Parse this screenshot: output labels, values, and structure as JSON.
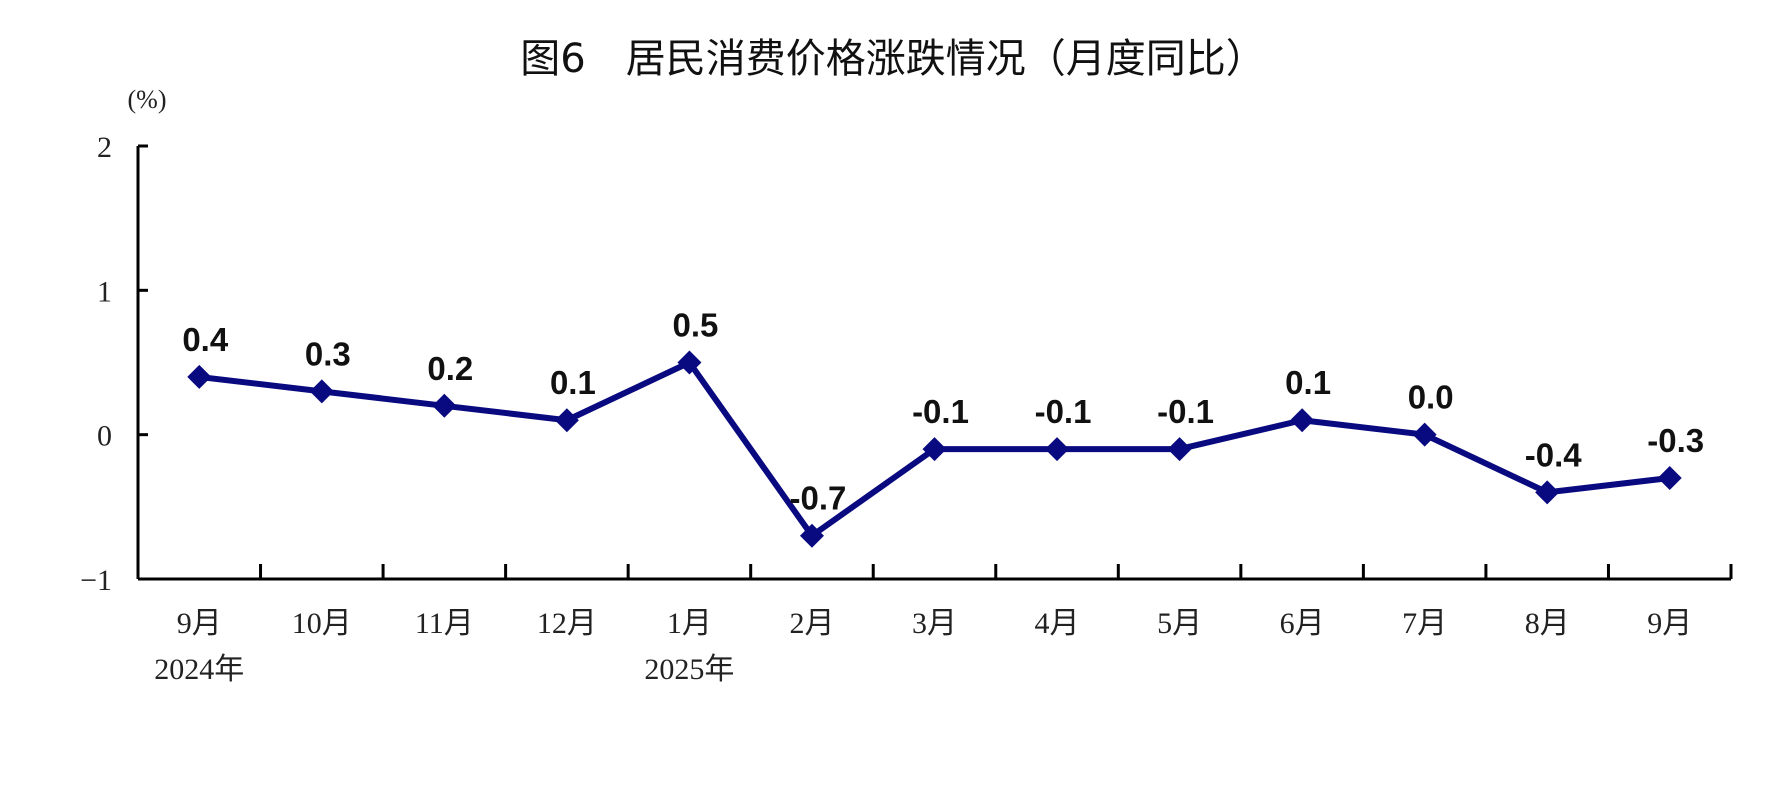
{
  "chart_data": {
    "type": "line",
    "title": "图6　居民消费价格涨跌情况（月度同比）",
    "ylabel": "(%)",
    "xlabel": "",
    "categories": [
      "9月",
      "10月",
      "11月",
      "12月",
      "1月",
      "2月",
      "3月",
      "4月",
      "5月",
      "6月",
      "7月",
      "8月",
      "9月"
    ],
    "year_labels": [
      {
        "index": 0,
        "label": "2024年"
      },
      {
        "index": 4,
        "label": "2025年"
      }
    ],
    "values": [
      0.4,
      0.3,
      0.2,
      0.1,
      0.5,
      -0.7,
      -0.1,
      -0.1,
      -0.1,
      0.1,
      0.0,
      -0.4,
      -0.3
    ],
    "data_labels": [
      "0.4",
      "0.3",
      "0.2",
      "0.1",
      "0.5",
      "-0.7",
      "-0.1",
      "-0.1",
      "-0.1",
      "0.1",
      "0.0",
      "-0.4",
      "-0.3"
    ],
    "ylim": [
      -1,
      2
    ],
    "yticks": [
      "2",
      "1",
      "0",
      "−1"
    ],
    "ytick_values": [
      2,
      1,
      0,
      -1
    ],
    "grid": false,
    "line_color": "#0a0a80",
    "marker": "diamond"
  }
}
